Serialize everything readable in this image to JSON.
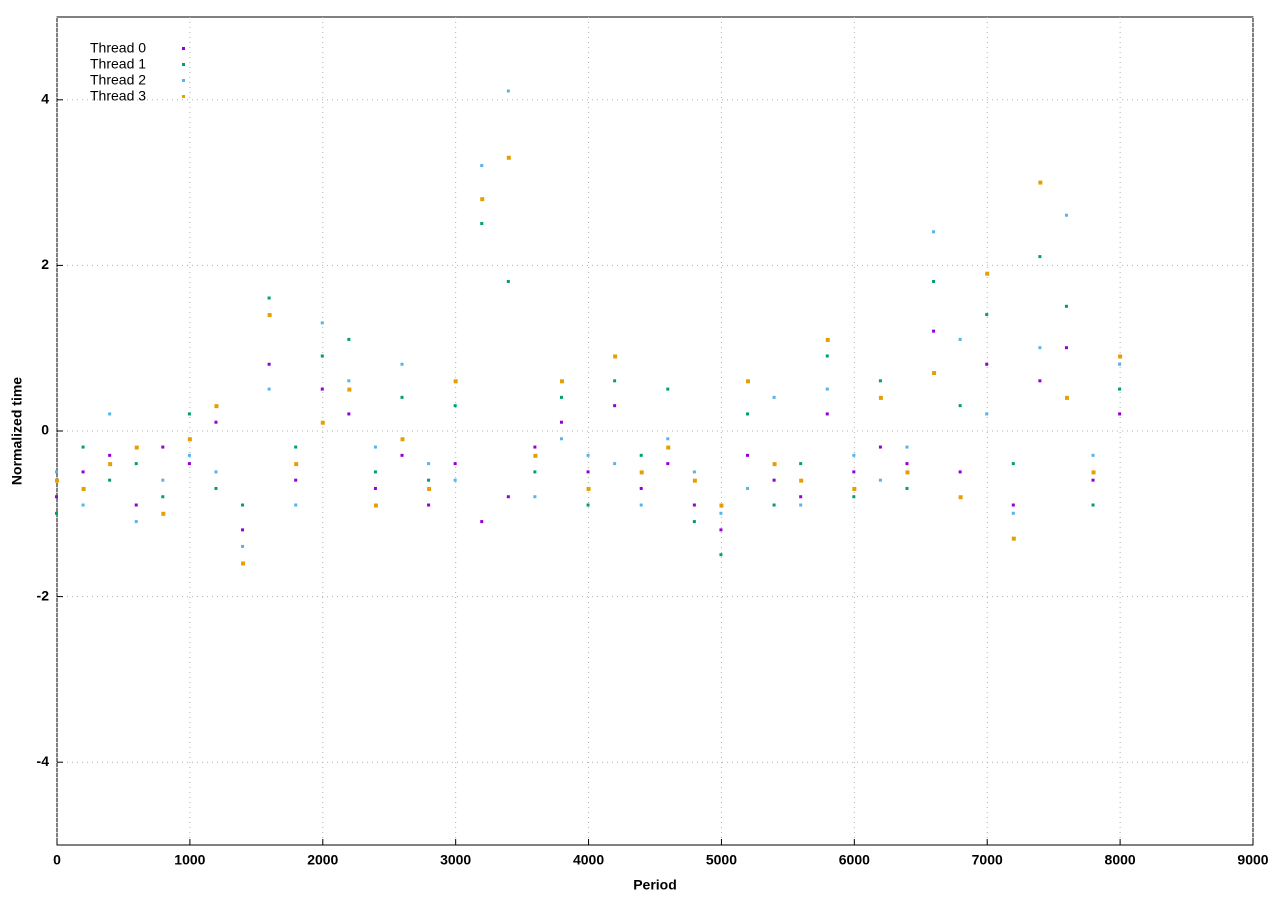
{
  "chart_data": {
    "type": "scatter",
    "x_label": "Period",
    "y_label": "Normalized time",
    "xlim": [
      0,
      9000
    ],
    "xticks": [
      0,
      1000,
      2000,
      3000,
      4000,
      5000,
      6000,
      7000,
      8000,
      9000
    ],
    "ylim": [
      -5,
      5
    ],
    "yticks": [
      -4,
      -2,
      0,
      2,
      4
    ],
    "grid": true,
    "legend": "top-left",
    "x": [
      0,
      200,
      400,
      600,
      800,
      1000,
      1200,
      1400,
      1600,
      1800,
      2000,
      2200,
      2400,
      2600,
      2800,
      3000,
      3200,
      3400,
      3600,
      3800,
      4000,
      4200,
      4400,
      4600,
      4800,
      5000,
      5200,
      5400,
      5600,
      5800,
      6000,
      6200,
      6400,
      6600,
      6800,
      7000,
      7200,
      7400,
      7600,
      7800,
      8000
    ],
    "series": [
      {
        "name": "Thread 0",
        "color": "#9400d3",
        "values": [
          -0.8,
          -0.5,
          -0.3,
          -0.9,
          -0.2,
          -0.4,
          0.1,
          -1.2,
          0.8,
          -0.6,
          0.5,
          0.2,
          -0.7,
          -0.3,
          -0.9,
          -0.4,
          -1.1,
          -0.8,
          -0.2,
          0.1,
          -0.5,
          0.3,
          -0.7,
          -0.4,
          -0.9,
          -1.2,
          -0.3,
          -0.6,
          -0.8,
          0.2,
          -0.5,
          -0.2,
          -0.4,
          1.2,
          -0.5,
          0.8,
          -0.9,
          0.6,
          1.0,
          -0.6,
          0.2
        ]
      },
      {
        "name": "Thread 1",
        "color": "#009e73",
        "values": [
          -1.0,
          -0.2,
          -0.6,
          -0.4,
          -0.8,
          0.2,
          -0.7,
          -0.9,
          1.6,
          -0.2,
          0.9,
          1.1,
          -0.5,
          0.4,
          -0.6,
          0.3,
          2.5,
          1.8,
          -0.5,
          0.4,
          -0.9,
          0.6,
          -0.3,
          0.5,
          -1.1,
          -1.5,
          0.2,
          -0.9,
          -0.4,
          0.9,
          -0.8,
          0.6,
          -0.7,
          1.8,
          0.3,
          1.4,
          -0.4,
          2.1,
          1.5,
          -0.9,
          0.5
        ]
      },
      {
        "name": "Thread 2",
        "color": "#56b4e9",
        "values": [
          -0.5,
          -0.9,
          0.2,
          -1.1,
          -0.6,
          -0.3,
          -0.5,
          -1.4,
          0.5,
          -0.9,
          1.3,
          0.6,
          -0.2,
          0.8,
          -0.4,
          -0.6,
          3.2,
          4.1,
          -0.8,
          -0.1,
          -0.3,
          -0.4,
          -0.9,
          -0.1,
          -0.5,
          -1.0,
          -0.7,
          0.4,
          -0.9,
          0.5,
          -0.3,
          -0.6,
          -0.2,
          2.4,
          1.1,
          0.2,
          -1.0,
          1.0,
          2.6,
          -0.3,
          0.8
        ]
      },
      {
        "name": "Thread 3",
        "color": "#e69f00",
        "values": [
          -0.6,
          -0.7,
          -0.4,
          -0.2,
          -1.0,
          -0.1,
          0.3,
          -1.6,
          1.4,
          -0.4,
          0.1,
          0.5,
          -0.9,
          -0.1,
          -0.7,
          0.6,
          2.8,
          3.3,
          -0.3,
          0.6,
          -0.7,
          0.9,
          -0.5,
          -0.2,
          -0.6,
          -0.9,
          0.6,
          -0.4,
          -0.6,
          1.1,
          -0.7,
          0.4,
          -0.5,
          0.7,
          -0.8,
          1.9,
          -1.3,
          3.0,
          0.4,
          -0.5,
          0.9
        ]
      }
    ]
  }
}
